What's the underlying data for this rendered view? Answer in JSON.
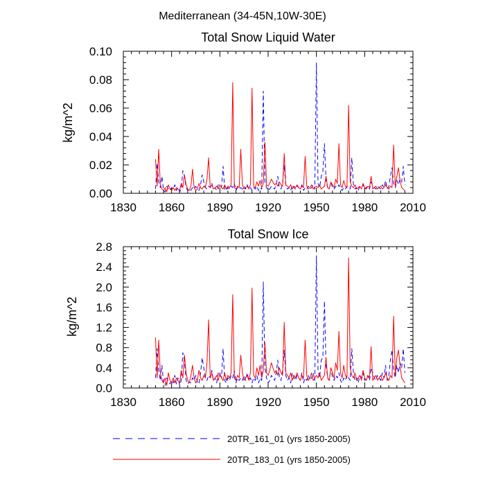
{
  "figure_title": "Mediterranean (34-45N,10W-30E)",
  "legend": [
    {
      "label": "20TR_161_01 (yrs 1850-2005)",
      "color": "#0000ff",
      "style": "dashed"
    },
    {
      "label": "20TR_183_01 (yrs 1850-2005)",
      "color": "#ff0000",
      "style": "solid"
    }
  ],
  "chart_data": [
    {
      "type": "line",
      "title": "Total Snow Liquid Water",
      "xlabel": "",
      "ylabel": "kg/m^2",
      "xlim": [
        1830,
        2010
      ],
      "ylim": [
        0,
        0.1
      ],
      "xticks": [
        1830,
        1860,
        1890,
        1920,
        1950,
        1980,
        2010
      ],
      "yticks": [
        0.0,
        0.02,
        0.04,
        0.06,
        0.08,
        0.1
      ],
      "ytick_labels": [
        "0.00",
        "0.02",
        "0.04",
        "0.06",
        "0.08",
        "0.10"
      ],
      "grid": false,
      "series": [
        {
          "name": "20TR_161_01 (yrs 1850-2005)",
          "color": "#0000ff",
          "style": "dashed",
          "x_start": 1850,
          "values": [
            0.003,
            0.021,
            0.008,
            0.004,
            0.012,
            0.002,
            0.001,
            0.005,
            0.003,
            0.002,
            0.004,
            0.003,
            0.006,
            0.002,
            0.004,
            0.001,
            0.003,
            0.016,
            0.012,
            0.004,
            0.002,
            0.003,
            0.002,
            0.004,
            0.003,
            0.005,
            0.003,
            0.002,
            0.006,
            0.013,
            0.008,
            0.004,
            0.003,
            0.005,
            0.004,
            0.007,
            0.003,
            0.004,
            0.002,
            0.006,
            0.005,
            0.004,
            0.019,
            0.003,
            0.002,
            0.004,
            0.003,
            0.005,
            0.004,
            0.007,
            0.002,
            0.004,
            0.003,
            0.004,
            0.003,
            0.005,
            0.003,
            0.006,
            0.003,
            0.004,
            0.002,
            0.004,
            0.003,
            0.005,
            0.002,
            0.004,
            0.003,
            0.072,
            0.008,
            0.004,
            0.002,
            0.003,
            0.005,
            0.004,
            0.003,
            0.006,
            0.012,
            0.004,
            0.003,
            0.007,
            0.02,
            0.005,
            0.003,
            0.004,
            0.002,
            0.006,
            0.004,
            0.003,
            0.005,
            0.004,
            0.003,
            0.006,
            0.002,
            0.004,
            0.003,
            0.005,
            0.003,
            0.004,
            0.006,
            0.003,
            0.092,
            0.007,
            0.004,
            0.012,
            0.015,
            0.035,
            0.009,
            0.004,
            0.003,
            0.008,
            0.004,
            0.003,
            0.005,
            0.004,
            0.006,
            0.003,
            0.002,
            0.004,
            0.003,
            0.005,
            0.004,
            0.003,
            0.025,
            0.006,
            0.003,
            0.004,
            0.002,
            0.005,
            0.004,
            0.006,
            0.003,
            0.004,
            0.005,
            0.003,
            0.008,
            0.006,
            0.004,
            0.003,
            0.005,
            0.004,
            0.003,
            0.006,
            0.004,
            0.009,
            0.003,
            0.005,
            0.012,
            0.018,
            0.007,
            0.004,
            0.009,
            0.006,
            0.01,
            0.008,
            0.019,
            0.006
          ]
        },
        {
          "name": "20TR_183_01 (yrs 1850-2005)",
          "color": "#ff0000",
          "style": "solid",
          "x_start": 1850,
          "values": [
            0.024,
            0.005,
            0.031,
            0.006,
            0.003,
            0.002,
            0.004,
            0.001,
            0.006,
            0.003,
            0.002,
            0.004,
            0.002,
            0.004,
            0.003,
            0.002,
            0.007,
            0.004,
            0.013,
            0.006,
            0.003,
            0.002,
            0.005,
            0.017,
            0.004,
            0.002,
            0.003,
            0.007,
            0.004,
            0.003,
            0.005,
            0.004,
            0.01,
            0.025,
            0.004,
            0.006,
            0.003,
            0.004,
            0.005,
            0.003,
            0.006,
            0.004,
            0.003,
            0.006,
            0.003,
            0.005,
            0.004,
            0.006,
            0.078,
            0.004,
            0.003,
            0.005,
            0.004,
            0.031,
            0.006,
            0.003,
            0.004,
            0.005,
            0.003,
            0.006,
            0.074,
            0.005,
            0.004,
            0.008,
            0.005,
            0.009,
            0.004,
            0.007,
            0.036,
            0.006,
            0.005,
            0.007,
            0.01,
            0.008,
            0.006,
            0.007,
            0.005,
            0.008,
            0.006,
            0.005,
            0.028,
            0.006,
            0.005,
            0.004,
            0.006,
            0.003,
            0.005,
            0.004,
            0.006,
            0.004,
            0.003,
            0.005,
            0.004,
            0.026,
            0.005,
            0.003,
            0.004,
            0.006,
            0.003,
            0.004,
            0.005,
            0.004,
            0.006,
            0.003,
            0.004,
            0.005,
            0.012,
            0.004,
            0.003,
            0.008,
            0.006,
            0.004,
            0.01,
            0.007,
            0.035,
            0.006,
            0.004,
            0.009,
            0.005,
            0.004,
            0.062,
            0.008,
            0.005,
            0.004,
            0.006,
            0.003,
            0.004,
            0.005,
            0.003,
            0.007,
            0.004,
            0.003,
            0.005,
            0.004,
            0.012,
            0.003,
            0.004,
            0.005,
            0.003,
            0.004,
            0.005,
            0.003,
            0.004,
            0.006,
            0.004,
            0.003,
            0.005,
            0.004,
            0.034,
            0.005,
            0.012,
            0.018,
            0.009,
            0.004,
            0.003,
            0.002
          ]
        }
      ]
    },
    {
      "type": "line",
      "title": "Total Snow Ice",
      "xlabel": "",
      "ylabel": "kg/m^2",
      "xlim": [
        1830,
        2010
      ],
      "ylim": [
        0,
        2.8
      ],
      "xticks": [
        1830,
        1860,
        1890,
        1920,
        1950,
        1980,
        2010
      ],
      "yticks": [
        0.0,
        0.4,
        0.8,
        1.2,
        1.6,
        2.0,
        2.4,
        2.8
      ],
      "ytick_labels": [
        "0.0",
        "0.4",
        "0.8",
        "1.2",
        "1.6",
        "2.0",
        "2.4",
        "2.8"
      ],
      "grid": false,
      "series": [
        {
          "name": "20TR_161_01 (yrs 1850-2005)",
          "color": "#0000ff",
          "style": "dashed",
          "x_start": 1850,
          "values": [
            0.2,
            0.78,
            0.35,
            0.15,
            0.45,
            0.1,
            0.05,
            0.2,
            0.12,
            0.08,
            0.15,
            0.1,
            0.25,
            0.08,
            0.2,
            0.05,
            0.15,
            0.7,
            0.55,
            0.15,
            0.08,
            0.12,
            0.1,
            0.2,
            0.15,
            0.25,
            0.12,
            0.08,
            0.3,
            0.6,
            0.4,
            0.2,
            0.15,
            0.25,
            0.2,
            0.35,
            0.15,
            0.2,
            0.1,
            0.3,
            0.25,
            0.2,
            0.78,
            0.15,
            0.1,
            0.2,
            0.15,
            0.25,
            0.2,
            0.35,
            0.1,
            0.2,
            0.15,
            0.2,
            0.15,
            0.25,
            0.15,
            0.3,
            0.15,
            0.2,
            0.1,
            0.2,
            0.15,
            0.25,
            0.1,
            0.2,
            0.15,
            2.1,
            0.4,
            0.2,
            0.1,
            0.15,
            0.25,
            0.2,
            0.15,
            0.3,
            0.55,
            0.2,
            0.15,
            0.35,
            0.75,
            0.25,
            0.15,
            0.2,
            0.1,
            0.3,
            0.2,
            0.15,
            0.25,
            0.2,
            0.15,
            0.3,
            0.1,
            0.2,
            0.15,
            0.25,
            0.15,
            0.2,
            0.3,
            0.15,
            2.62,
            0.35,
            0.2,
            0.55,
            0.6,
            1.72,
            0.45,
            0.2,
            0.15,
            0.4,
            0.2,
            0.15,
            0.25,
            0.2,
            0.3,
            0.15,
            0.1,
            0.2,
            0.15,
            0.25,
            0.2,
            0.15,
            0.78,
            0.3,
            0.15,
            0.2,
            0.1,
            0.25,
            0.2,
            0.3,
            0.15,
            0.2,
            0.25,
            0.15,
            0.4,
            0.3,
            0.2,
            0.15,
            0.25,
            0.2,
            0.15,
            0.3,
            0.2,
            0.45,
            0.15,
            0.25,
            0.55,
            0.75,
            0.35,
            0.2,
            0.45,
            0.3,
            0.5,
            0.4,
            0.78,
            0.3
          ]
        },
        {
          "name": "20TR_183_01 (yrs 1850-2005)",
          "color": "#ff0000",
          "style": "solid",
          "x_start": 1850,
          "values": [
            1.0,
            0.2,
            0.95,
            0.3,
            0.15,
            0.1,
            0.2,
            0.05,
            0.3,
            0.15,
            0.1,
            0.2,
            0.1,
            0.2,
            0.15,
            0.1,
            0.35,
            0.2,
            0.65,
            0.3,
            0.15,
            0.1,
            0.25,
            0.45,
            0.2,
            0.1,
            0.15,
            0.35,
            0.2,
            0.15,
            0.25,
            0.2,
            0.5,
            1.35,
            0.2,
            0.3,
            0.15,
            0.2,
            0.25,
            0.15,
            0.3,
            0.2,
            0.15,
            0.3,
            0.15,
            0.25,
            0.2,
            0.3,
            1.85,
            0.2,
            0.15,
            0.25,
            0.2,
            0.65,
            0.3,
            0.15,
            0.2,
            0.25,
            0.15,
            0.3,
            1.98,
            0.25,
            0.2,
            0.4,
            0.25,
            0.45,
            0.2,
            0.35,
            0.9,
            0.3,
            0.25,
            0.35,
            0.5,
            0.4,
            0.3,
            0.35,
            0.25,
            0.4,
            0.3,
            0.25,
            1.3,
            0.3,
            0.25,
            0.2,
            0.3,
            0.15,
            0.25,
            0.2,
            0.3,
            0.2,
            0.15,
            0.25,
            0.2,
            0.95,
            0.25,
            0.15,
            0.2,
            0.3,
            0.15,
            0.2,
            0.25,
            0.2,
            0.3,
            0.15,
            0.2,
            0.25,
            0.6,
            0.2,
            0.15,
            0.4,
            0.3,
            0.2,
            0.5,
            0.35,
            1.12,
            0.3,
            0.2,
            0.45,
            0.25,
            0.2,
            2.58,
            0.4,
            0.25,
            0.2,
            0.3,
            0.15,
            0.2,
            0.25,
            0.15,
            0.35,
            0.2,
            0.15,
            0.25,
            0.2,
            0.82,
            0.15,
            0.2,
            0.25,
            0.15,
            0.2,
            0.25,
            0.15,
            0.2,
            0.3,
            0.2,
            0.15,
            0.25,
            0.2,
            1.42,
            0.25,
            0.6,
            0.75,
            0.45,
            0.2,
            0.15,
            0.1
          ]
        }
      ]
    }
  ]
}
